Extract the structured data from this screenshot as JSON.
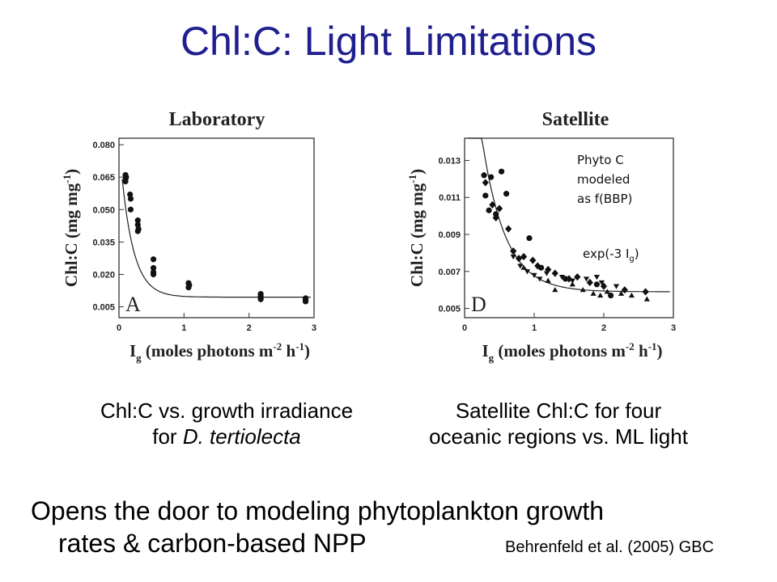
{
  "slide": {
    "title": "Chl:C: Light Limitations",
    "caption_a_line1": "Chl:C vs. growth irradiance",
    "caption_a_line2_prefix": "for ",
    "caption_a_line2_species": "D. tertiolecta",
    "caption_d_line1": "Satellite Chl:C for four",
    "caption_d_line2": "oceanic regions vs. ML light",
    "bottom_line1": "Opens the door to modeling phytoplankton growth",
    "bottom_line2": "rates & carbon-based NPP",
    "citation": "Behrenfeld et al. (2005) GBC",
    "annotation_phyto": [
      "Phyto C",
      "modeled",
      "as f(BBP)"
    ],
    "annotation_exp": "exp(-3 I",
    "annotation_exp_sub": "g",
    "annotation_exp_end": ")"
  },
  "chart_data": [
    {
      "type": "scatter",
      "title": "Laboratory",
      "panel": "A",
      "ylabel": "Chl:C (mg mg-1)",
      "xlabel": "Ig (moles photons m-2 h-1)",
      "xlim": [
        0,
        3
      ],
      "ylim": [
        0,
        0.083
      ],
      "xticks": [
        "0",
        "1",
        "2",
        "3"
      ],
      "yticks": [
        {
          "value": 0.005,
          "label": "0.005"
        },
        {
          "value": 0.02,
          "label": "0.020"
        },
        {
          "value": 0.035,
          "label": "0.035"
        },
        {
          "value": 0.05,
          "label": "0.050"
        },
        {
          "value": 0.065,
          "label": "0.065"
        },
        {
          "value": 0.08,
          "label": "0.080"
        }
      ],
      "fit_curve": {
        "a": 0.0095,
        "b": 0.071,
        "k": 5.3
      },
      "series": [
        {
          "marker": "circle",
          "points": [
            [
              0.1,
              0.066
            ],
            [
              0.1,
              0.064
            ],
            [
              0.1,
              0.063
            ],
            [
              0.11,
              0.065
            ],
            [
              0.17,
              0.057
            ],
            [
              0.18,
              0.055
            ],
            [
              0.18,
              0.05
            ],
            [
              0.29,
              0.045
            ],
            [
              0.29,
              0.043
            ],
            [
              0.29,
              0.04
            ],
            [
              0.3,
              0.041
            ],
            [
              0.53,
              0.027
            ],
            [
              0.53,
              0.023
            ],
            [
              0.53,
              0.021
            ],
            [
              0.53,
              0.02
            ],
            [
              1.07,
              0.016
            ],
            [
              1.07,
              0.014
            ],
            [
              1.08,
              0.015
            ],
            [
              2.18,
              0.011
            ],
            [
              2.18,
              0.01
            ],
            [
              2.18,
              0.009
            ],
            [
              2.18,
              0.0085
            ],
            [
              2.87,
              0.009
            ],
            [
              2.87,
              0.0082
            ],
            [
              2.87,
              0.0075
            ]
          ]
        }
      ]
    },
    {
      "type": "scatter",
      "title": "Satellite",
      "panel": "D",
      "ylabel": "Chl:C (mg mg-1)",
      "xlabel": "Ig (moles photons m-2 h-1)",
      "xlim": [
        0,
        3
      ],
      "ylim": [
        0.0045,
        0.0142
      ],
      "xticks": [
        "0",
        "1",
        "2",
        "3"
      ],
      "yticks": [
        {
          "value": 0.005,
          "label": "0.005"
        },
        {
          "value": 0.007,
          "label": "0.007"
        },
        {
          "value": 0.009,
          "label": "0.009"
        },
        {
          "value": 0.011,
          "label": "0.011"
        },
        {
          "value": 0.013,
          "label": "0.013"
        }
      ],
      "fit_curve": {
        "a": 0.0059,
        "b": 0.0175,
        "k": 3
      },
      "series": [
        {
          "marker": "circle",
          "points": [
            [
              0.28,
              0.0122
            ],
            [
              0.3,
              0.0111
            ],
            [
              0.38,
              0.0121
            ],
            [
              0.53,
              0.0124
            ],
            [
              0.6,
              0.0112
            ],
            [
              0.93,
              0.0088
            ],
            [
              0.35,
              0.0103
            ],
            [
              0.45,
              0.0101
            ],
            [
              1.1,
              0.0072
            ],
            [
              1.45,
              0.0066
            ],
            [
              1.9,
              0.0063
            ],
            [
              2.1,
              0.0057
            ]
          ]
        },
        {
          "marker": "diamond",
          "points": [
            [
              0.3,
              0.0118
            ],
            [
              0.4,
              0.0106
            ],
            [
              0.45,
              0.0099
            ],
            [
              0.5,
              0.0104
            ],
            [
              0.63,
              0.0093
            ],
            [
              0.7,
              0.0081
            ],
            [
              0.78,
              0.0077
            ],
            [
              0.85,
              0.0078
            ],
            [
              0.98,
              0.0076
            ],
            [
              1.05,
              0.0073
            ],
            [
              1.2,
              0.0071
            ],
            [
              1.3,
              0.0069
            ],
            [
              1.5,
              0.0066
            ],
            [
              1.62,
              0.0067
            ],
            [
              1.8,
              0.0064
            ],
            [
              2.0,
              0.0062
            ],
            [
              2.3,
              0.006
            ],
            [
              2.6,
              0.0059
            ]
          ]
        },
        {
          "marker": "triangle-down",
          "points": [
            [
              0.7,
              0.0078
            ],
            [
              0.8,
              0.0073
            ],
            [
              0.9,
              0.007
            ],
            [
              1.0,
              0.0068
            ],
            [
              1.08,
              0.0066
            ],
            [
              1.18,
              0.0069
            ],
            [
              1.4,
              0.0067
            ],
            [
              1.55,
              0.0065
            ],
            [
              1.75,
              0.0066
            ],
            [
              1.9,
              0.0067
            ],
            [
              1.97,
              0.0064
            ],
            [
              2.18,
              0.0062
            ]
          ]
        },
        {
          "marker": "triangle-up",
          "points": [
            [
              0.85,
              0.0072
            ],
            [
              1.2,
              0.0065
            ],
            [
              1.3,
              0.006
            ],
            [
              1.55,
              0.0063
            ],
            [
              1.7,
              0.006
            ],
            [
              1.85,
              0.0058
            ],
            [
              1.95,
              0.0057
            ],
            [
              2.05,
              0.0059
            ],
            [
              2.25,
              0.0058
            ],
            [
              2.4,
              0.0057
            ],
            [
              2.62,
              0.0055
            ]
          ]
        }
      ]
    }
  ]
}
